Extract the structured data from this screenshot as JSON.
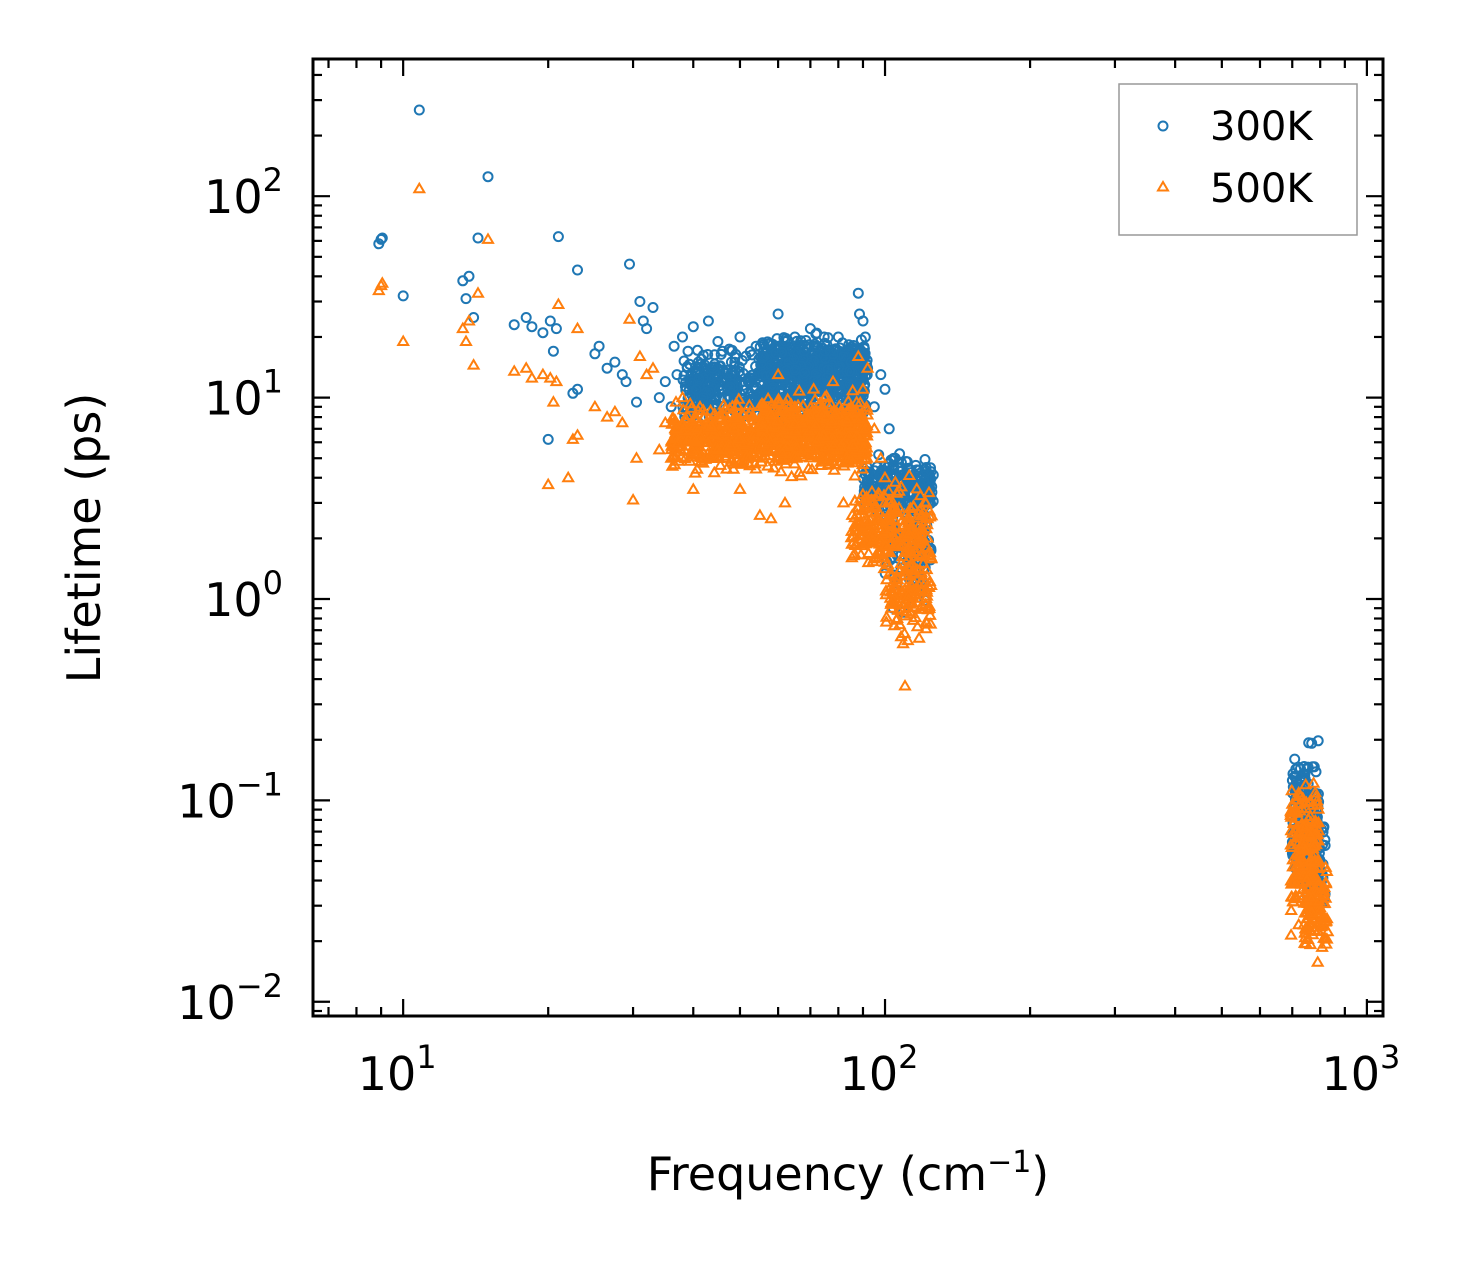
{
  "chart_data": {
    "type": "scatter",
    "title": "",
    "xlabel": "Frequency (cm",
    "xlabel_sup": "−1",
    "xlabel_end": ")",
    "ylabel": "Lifetime (ps)",
    "xscale": "log",
    "yscale": "log",
    "xlim": [
      6.5,
      1080
    ],
    "ylim": [
      0.0085,
      480
    ],
    "xticks": [
      {
        "value": 10,
        "base": "10",
        "exp": "1"
      },
      {
        "value": 100,
        "base": "10",
        "exp": "2"
      },
      {
        "value": 1000,
        "base": "10",
        "exp": "3"
      }
    ],
    "yticks": [
      {
        "value": 100,
        "base": "10",
        "exp": "2"
      },
      {
        "value": 10,
        "base": "10",
        "exp": "1"
      },
      {
        "value": 1,
        "base": "10",
        "exp": "0"
      },
      {
        "value": 0.1,
        "base": "10",
        "exp": "−1"
      },
      {
        "value": 0.01,
        "base": "10",
        "exp": "−2"
      }
    ],
    "legend_position": "top-right",
    "series": [
      {
        "name": "300K",
        "marker": "circle",
        "color": "#1f77b4",
        "points": [
          [
            8.9,
            58
          ],
          [
            9.0,
            61
          ],
          [
            9.05,
            62
          ],
          [
            10.0,
            32
          ],
          [
            10.8,
            268
          ],
          [
            13.3,
            38
          ],
          [
            13.5,
            31
          ],
          [
            13.7,
            40
          ],
          [
            14.0,
            25
          ],
          [
            14.3,
            62
          ],
          [
            15.0,
            125
          ],
          [
            17.0,
            23
          ],
          [
            18.0,
            25
          ],
          [
            18.5,
            22.5
          ],
          [
            19.5,
            21
          ],
          [
            20.0,
            6.2
          ],
          [
            20.2,
            24
          ],
          [
            20.5,
            17
          ],
          [
            20.8,
            22
          ],
          [
            21.0,
            63
          ],
          [
            22.5,
            10.5
          ],
          [
            23.0,
            11
          ],
          [
            23.0,
            43
          ],
          [
            25.0,
            16.5
          ],
          [
            25.5,
            18
          ],
          [
            26.5,
            14
          ],
          [
            27.5,
            15
          ],
          [
            28.5,
            13
          ],
          [
            29.0,
            12
          ],
          [
            29.5,
            46
          ],
          [
            30.5,
            9.5
          ],
          [
            31.0,
            30
          ],
          [
            31.5,
            24
          ],
          [
            32.0,
            22
          ],
          [
            33.0,
            28
          ],
          [
            34.0,
            10
          ],
          [
            35.0,
            12
          ],
          [
            36.0,
            9
          ],
          [
            36.5,
            18
          ],
          [
            37.0,
            13
          ],
          [
            38.0,
            20
          ],
          [
            39.0,
            17
          ],
          [
            40.0,
            22.5
          ],
          [
            41.0,
            15
          ],
          [
            42.0,
            10
          ],
          [
            43.0,
            24
          ],
          [
            44.0,
            14
          ],
          [
            45.0,
            19
          ],
          [
            46.0,
            17
          ],
          [
            48.0,
            15
          ],
          [
            50.0,
            20
          ],
          [
            52.0,
            12
          ],
          [
            54.0,
            18
          ],
          [
            56.0,
            16
          ],
          [
            60.0,
            26
          ],
          [
            62.0,
            19
          ],
          [
            65.0,
            20
          ],
          [
            68.0,
            17
          ],
          [
            70.0,
            22
          ],
          [
            72.0,
            18
          ],
          [
            75.0,
            17
          ],
          [
            80.0,
            20
          ],
          [
            82.0,
            16
          ],
          [
            85.0,
            15
          ],
          [
            88.0,
            33
          ],
          [
            88.5,
            26
          ],
          [
            90.0,
            24
          ],
          [
            91.0,
            20
          ],
          [
            92.0,
            14
          ],
          [
            95.0,
            9
          ],
          [
            98.0,
            13
          ],
          [
            100.0,
            11
          ],
          [
            102.0,
            7
          ],
          [
            105.0,
            5
          ],
          [
            108.0,
            4.5
          ],
          [
            110.0,
            3.5
          ],
          [
            112.0,
            3
          ],
          [
            115.0,
            2.8
          ],
          [
            118.0,
            2.5
          ],
          [
            120.0,
            3
          ],
          [
            122.0,
            2.4
          ],
          [
            124.0,
            3.2
          ],
          [
            100.5,
            2.3
          ],
          [
            106.0,
            1.2
          ],
          [
            108.5,
            1.05
          ],
          [
            110.5,
            0.95
          ],
          [
            109.0,
            0.86
          ],
          [
            104.0,
            0.9
          ]
        ],
        "clusters": [
          {
            "x": [
              38,
              92
            ],
            "y": [
              6,
              20
            ],
            "n": 650
          },
          {
            "x": [
              55,
              92
            ],
            "y": [
              10,
              22
            ],
            "n": 380
          },
          {
            "x": [
              90,
              126
            ],
            "y": [
              2.2,
              6
            ],
            "n": 240
          },
          {
            "x": [
              100,
              125
            ],
            "y": [
              0.9,
              3.5
            ],
            "n": 90
          },
          {
            "x": [
              700,
              795
            ],
            "y": [
              0.03,
              0.24
            ],
            "n": 170
          },
          {
            "x": [
              740,
              820
            ],
            "y": [
              0.022,
              0.11
            ],
            "n": 90
          }
        ]
      },
      {
        "name": "500K",
        "marker": "triangle",
        "color": "#ff7f0e",
        "points": [
          [
            8.9,
            34
          ],
          [
            9.0,
            36
          ],
          [
            9.05,
            37
          ],
          [
            10.0,
            19
          ],
          [
            10.8,
            109
          ],
          [
            13.3,
            22
          ],
          [
            13.5,
            19
          ],
          [
            13.7,
            24
          ],
          [
            14.0,
            14.5
          ],
          [
            14.3,
            33
          ],
          [
            15.0,
            61
          ],
          [
            17.0,
            13.5
          ],
          [
            18.0,
            14
          ],
          [
            18.5,
            12.5
          ],
          [
            19.5,
            13
          ],
          [
            20.0,
            3.7
          ],
          [
            20.2,
            12.5
          ],
          [
            20.5,
            9.5
          ],
          [
            20.8,
            12
          ],
          [
            21.0,
            29
          ],
          [
            22.0,
            4
          ],
          [
            22.5,
            6.2
          ],
          [
            23.0,
            6.5
          ],
          [
            23.0,
            22
          ],
          [
            25.0,
            9
          ],
          [
            26.5,
            8
          ],
          [
            27.5,
            8.5
          ],
          [
            28.5,
            7.5
          ],
          [
            29.5,
            24.5
          ],
          [
            30.0,
            3.1
          ],
          [
            30.5,
            5
          ],
          [
            31.0,
            16
          ],
          [
            32.0,
            13
          ],
          [
            33.0,
            14
          ],
          [
            34.0,
            5.5
          ],
          [
            35.0,
            7.5
          ],
          [
            36.0,
            5
          ],
          [
            37.0,
            7
          ],
          [
            38.0,
            10
          ],
          [
            40.0,
            3.5
          ],
          [
            42.0,
            8
          ],
          [
            45.0,
            5.5
          ],
          [
            48.0,
            4.8
          ],
          [
            50.0,
            3.5
          ],
          [
            55.0,
            2.6
          ],
          [
            58.0,
            2.5
          ],
          [
            60.0,
            13
          ],
          [
            62.0,
            3
          ],
          [
            65.0,
            9
          ],
          [
            70.0,
            8
          ],
          [
            75.0,
            10
          ],
          [
            78.0,
            12
          ],
          [
            82.0,
            3
          ],
          [
            85.0,
            9
          ],
          [
            88.0,
            16
          ],
          [
            90.0,
            11
          ],
          [
            92.0,
            14
          ],
          [
            95.0,
            7
          ],
          [
            98.0,
            5
          ],
          [
            100.0,
            4
          ],
          [
            102.0,
            3
          ],
          [
            105.0,
            2
          ],
          [
            108.0,
            1.5
          ],
          [
            110.0,
            1.7
          ],
          [
            112.0,
            1.3
          ],
          [
            115.0,
            1.2
          ],
          [
            118.0,
            1.4
          ],
          [
            120.0,
            1.5
          ],
          [
            122.0,
            1.3
          ],
          [
            124.0,
            1.7
          ],
          [
            106.0,
            0.8
          ],
          [
            108.0,
            0.65
          ],
          [
            109.0,
            0.6
          ],
          [
            110.0,
            0.37
          ],
          [
            104.0,
            1.2
          ]
        ],
        "clusters": [
          {
            "x": [
              36,
              92
            ],
            "y": [
              3.8,
              10.5
            ],
            "n": 750
          },
          {
            "x": [
              55,
              92
            ],
            "y": [
              4,
              12
            ],
            "n": 320
          },
          {
            "x": [
              85,
              125
            ],
            "y": [
              1.1,
              4.5
            ],
            "n": 240
          },
          {
            "x": [
              100,
              125
            ],
            "y": [
              0.55,
              2
            ],
            "n": 110
          },
          {
            "x": [
              695,
              795
            ],
            "y": [
              0.018,
              0.16
            ],
            "n": 200
          },
          {
            "x": [
              740,
              830
            ],
            "y": [
              0.015,
              0.05
            ],
            "n": 90
          }
        ]
      }
    ]
  }
}
